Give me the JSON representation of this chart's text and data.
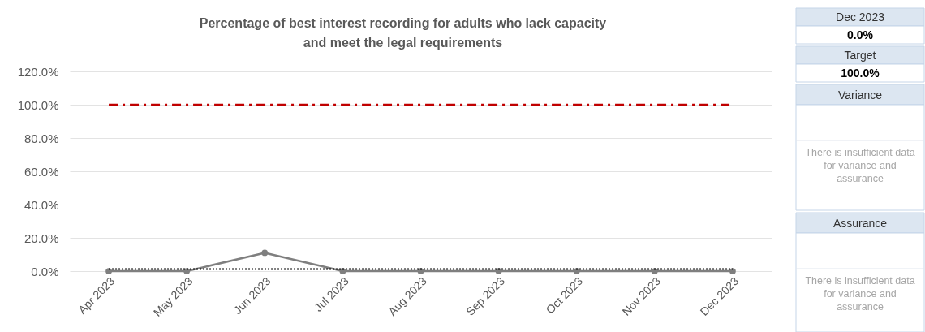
{
  "chart_data": [
    {
      "type": "line",
      "title": "Percentage of best interest recording for adults who lack capacity\nand meet the legal requirements",
      "categories": [
        "Apr 2023",
        "May 2023",
        "Jun 2023",
        "Jul 2023",
        "Aug 2023",
        "Sep 2023",
        "Oct 2023",
        "Nov 2023",
        "Dec 2023"
      ],
      "series": [
        {
          "color": "#7f7f7f",
          "values": [
            0,
            0,
            11,
            0,
            0,
            0,
            0,
            0,
            0
          ]
        }
      ],
      "ylim": [
        0,
        120
      ],
      "yticks": [
        {
          "value": 0,
          "label": "0.0%"
        },
        {
          "value": 20,
          "label": "20.0%"
        },
        {
          "value": 40,
          "label": "40.0%"
        },
        {
          "value": 60,
          "label": "60.0%"
        },
        {
          "value": 80,
          "label": "80.0%"
        },
        {
          "value": 100,
          "label": "100.0%"
        },
        {
          "value": 120,
          "label": "120.0%"
        }
      ],
      "ref_lines": [
        {
          "axis": "y",
          "value": 100,
          "color": "#c00000",
          "line_style": "dashed"
        },
        {
          "axis": "y",
          "value": 1.2,
          "color": "#000000",
          "line_style": "dotted"
        }
      ],
      "grid": "y",
      "marker": "circle",
      "line_style": "solid"
    },
    {
      "type": "other",
      "annotations": [
        "Dec 2023",
        "0.0%",
        "Target",
        "100.0%",
        "Variance",
        "There is insufficient data\nfor variance and\nassurance",
        "Assurance",
        "There is insufficient data\nfor variance and\nassurance"
      ]
    }
  ]
}
